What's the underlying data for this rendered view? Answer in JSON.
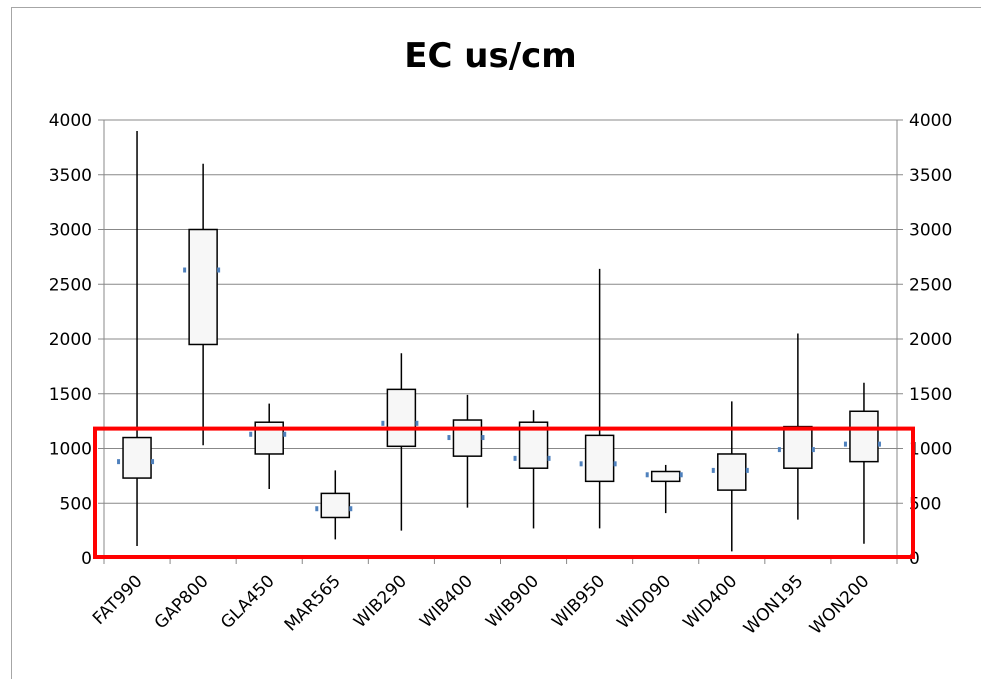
{
  "chart_data": {
    "type": "box",
    "title": "EC us/cm",
    "xlabel": "",
    "ylabel": "",
    "ylim": [
      0,
      4000
    ],
    "y_ticks": [
      0,
      500,
      1000,
      1500,
      2000,
      2500,
      3000,
      3500,
      4000
    ],
    "secondary_y_ticks": [
      0,
      500,
      1000,
      1500,
      2000,
      2500,
      3000,
      3500,
      4000
    ],
    "grid": true,
    "categories": [
      "FAT990",
      "GAP800",
      "GLA450",
      "MAR565",
      "WIB290",
      "WIB400",
      "WIB900",
      "WIB950",
      "WID090",
      "WID400",
      "WON195",
      "WON200"
    ],
    "series": [
      {
        "values": [
          {
            "min": 110,
            "q1": 730,
            "q3": 1100,
            "max": 3900,
            "mean": 880
          },
          {
            "min": 1030,
            "q1": 1950,
            "q3": 3000,
            "max": 3600,
            "mean": 2630
          },
          {
            "min": 630,
            "q1": 950,
            "q3": 1240,
            "max": 1410,
            "mean": 1130
          },
          {
            "min": 170,
            "q1": 370,
            "q3": 590,
            "max": 800,
            "mean": 450
          },
          {
            "min": 250,
            "q1": 1020,
            "q3": 1540,
            "max": 1870,
            "mean": 1230
          },
          {
            "min": 460,
            "q1": 930,
            "q3": 1260,
            "max": 1490,
            "mean": 1100
          },
          {
            "min": 270,
            "q1": 820,
            "q3": 1240,
            "max": 1350,
            "mean": 910
          },
          {
            "min": 270,
            "q1": 700,
            "q3": 1120,
            "max": 2640,
            "mean": 860
          },
          {
            "min": 410,
            "q1": 700,
            "q3": 790,
            "max": 850,
            "mean": 760
          },
          {
            "min": 60,
            "q1": 620,
            "q3": 950,
            "max": 1430,
            "mean": 800
          },
          {
            "min": 350,
            "q1": 820,
            "q3": 1200,
            "max": 2050,
            "mean": 990
          },
          {
            "min": 130,
            "q1": 880,
            "q3": 1340,
            "max": 1600,
            "mean": 1040
          }
        ]
      }
    ],
    "highlight_range": [
      0,
      1200
    ],
    "colors": {
      "box_fill": "#f7f7f7",
      "box_stroke": "#000000",
      "mean_marker": "#4f81bd",
      "grid": "#888888",
      "highlight": "#ff0000"
    }
  }
}
